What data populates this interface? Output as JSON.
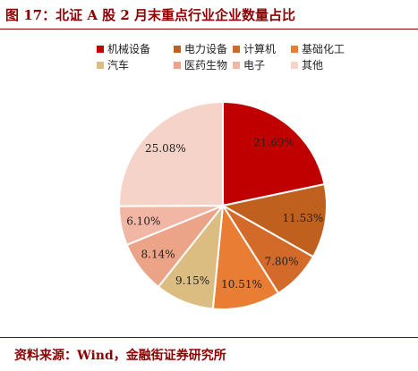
{
  "title": "图 17：北证 A 股 2 月末重点行业企业数量占比",
  "source": "资料来源：Wind，金融街证券研究所",
  "chart_data": {
    "type": "pie",
    "title": "图 17：北证 A 股 2 月末重点行业企业数量占比",
    "legend_position": "top",
    "start_angle_deg": 0,
    "direction": "clockwise",
    "slices": [
      {
        "name": "机械设备",
        "value": 21.69,
        "label": "21.69%",
        "color": "#c00000"
      },
      {
        "name": "电力设备",
        "value": 11.53,
        "label": "11.53%",
        "color": "#c0601f"
      },
      {
        "name": "计算机",
        "value": 7.8,
        "label": "7.80%",
        "color": "#d46a2a"
      },
      {
        "name": "基础化工",
        "value": 10.51,
        "label": "10.51%",
        "color": "#e87d33"
      },
      {
        "name": "汽车",
        "value": 9.15,
        "label": "9.15%",
        "color": "#dbbd82"
      },
      {
        "name": "医药生物",
        "value": 8.14,
        "label": "8.14%",
        "color": "#eba488"
      },
      {
        "name": "电子",
        "value": 6.1,
        "label": "6.10%",
        "color": "#f2b7a4"
      },
      {
        "name": "其他",
        "value": 25.08,
        "label": "25.08%",
        "color": "#f6d3c8"
      }
    ]
  }
}
